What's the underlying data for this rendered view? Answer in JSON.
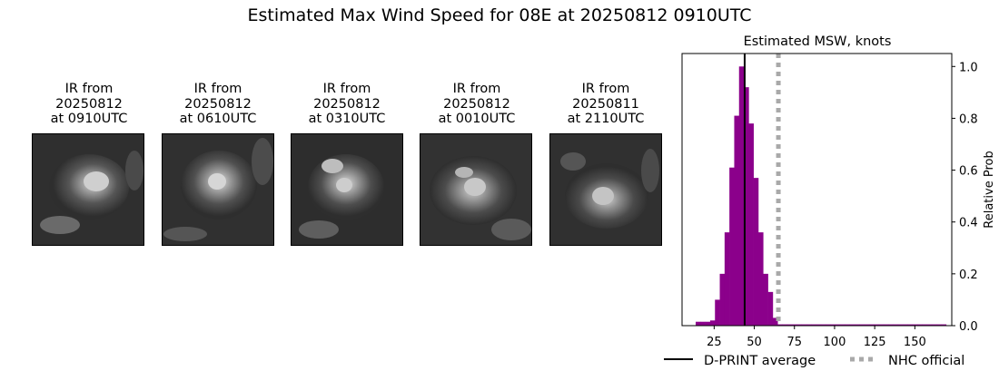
{
  "suptitle": "Estimated Max Wind Speed for 08E at 20250812 0910UTC",
  "ir_panels": [
    {
      "line1": "IR from",
      "line2": "20250812",
      "line3": "at 0910UTC"
    },
    {
      "line1": "IR from",
      "line2": "20250812",
      "line3": "at 0610UTC"
    },
    {
      "line1": "IR from",
      "line2": "20250812",
      "line3": "at 0310UTC"
    },
    {
      "line1": "IR from",
      "line2": "20250812",
      "line3": "at 0010UTC"
    },
    {
      "line1": "IR from",
      "line2": "20250811",
      "line3": "at 2110UTC"
    }
  ],
  "chart_data": {
    "type": "bar",
    "title": "Estimated MSW, knots",
    "xlabel": "",
    "ylabel": "Relative Prob",
    "xlim": [
      5,
      173
    ],
    "ylim": [
      0,
      1.05
    ],
    "xticks": [
      25,
      50,
      75,
      100,
      125,
      150
    ],
    "yticks": [
      0.0,
      0.2,
      0.4,
      0.6,
      0.8,
      1.0
    ],
    "yaxis_side": "right",
    "grid": false,
    "bin_width": 3,
    "bars": [
      {
        "x": 15,
        "y": 0.015
      },
      {
        "x": 18,
        "y": 0.015
      },
      {
        "x": 21,
        "y": 0.015
      },
      {
        "x": 24,
        "y": 0.02
      },
      {
        "x": 27,
        "y": 0.1
      },
      {
        "x": 30,
        "y": 0.2
      },
      {
        "x": 33,
        "y": 0.36
      },
      {
        "x": 36,
        "y": 0.61
      },
      {
        "x": 39,
        "y": 0.81
      },
      {
        "x": 42,
        "y": 1.0
      },
      {
        "x": 45,
        "y": 0.92
      },
      {
        "x": 48,
        "y": 0.78
      },
      {
        "x": 51,
        "y": 0.57
      },
      {
        "x": 54,
        "y": 0.36
      },
      {
        "x": 57,
        "y": 0.2
      },
      {
        "x": 60,
        "y": 0.13
      },
      {
        "x": 63,
        "y": 0.03
      },
      {
        "x": 66,
        "y": 0.005
      },
      {
        "x": 69,
        "y": 0.005
      },
      {
        "x": 72,
        "y": 0.005
      },
      {
        "x": 75,
        "y": 0.005
      },
      {
        "x": 78,
        "y": 0.005
      },
      {
        "x": 81,
        "y": 0.005
      },
      {
        "x": 84,
        "y": 0.005
      },
      {
        "x": 87,
        "y": 0.005
      },
      {
        "x": 90,
        "y": 0.005
      },
      {
        "x": 93,
        "y": 0.005
      },
      {
        "x": 96,
        "y": 0.005
      },
      {
        "x": 99,
        "y": 0.005
      },
      {
        "x": 102,
        "y": 0.005
      },
      {
        "x": 105,
        "y": 0.005
      },
      {
        "x": 108,
        "y": 0.005
      },
      {
        "x": 111,
        "y": 0.005
      },
      {
        "x": 114,
        "y": 0.005
      },
      {
        "x": 117,
        "y": 0.005
      },
      {
        "x": 120,
        "y": 0.005
      },
      {
        "x": 123,
        "y": 0.005
      },
      {
        "x": 126,
        "y": 0.005
      },
      {
        "x": 129,
        "y": 0.005
      },
      {
        "x": 132,
        "y": 0.005
      },
      {
        "x": 135,
        "y": 0.005
      },
      {
        "x": 138,
        "y": 0.005
      },
      {
        "x": 141,
        "y": 0.005
      },
      {
        "x": 144,
        "y": 0.005
      },
      {
        "x": 147,
        "y": 0.005
      },
      {
        "x": 150,
        "y": 0.005
      },
      {
        "x": 153,
        "y": 0.005
      },
      {
        "x": 156,
        "y": 0.005
      },
      {
        "x": 159,
        "y": 0.005
      },
      {
        "x": 162,
        "y": 0.005
      },
      {
        "x": 165,
        "y": 0.005
      },
      {
        "x": 168,
        "y": 0.005
      }
    ],
    "bar_color": "#8b008b",
    "dprint_average": 44,
    "nhc_official": 65,
    "legend": [
      {
        "label": "D-PRINT average",
        "style": "solid",
        "color": "#000000"
      },
      {
        "label": "NHC official",
        "style": "dotted",
        "color": "#a9a9a9"
      }
    ],
    "legend_position": "bottom"
  }
}
